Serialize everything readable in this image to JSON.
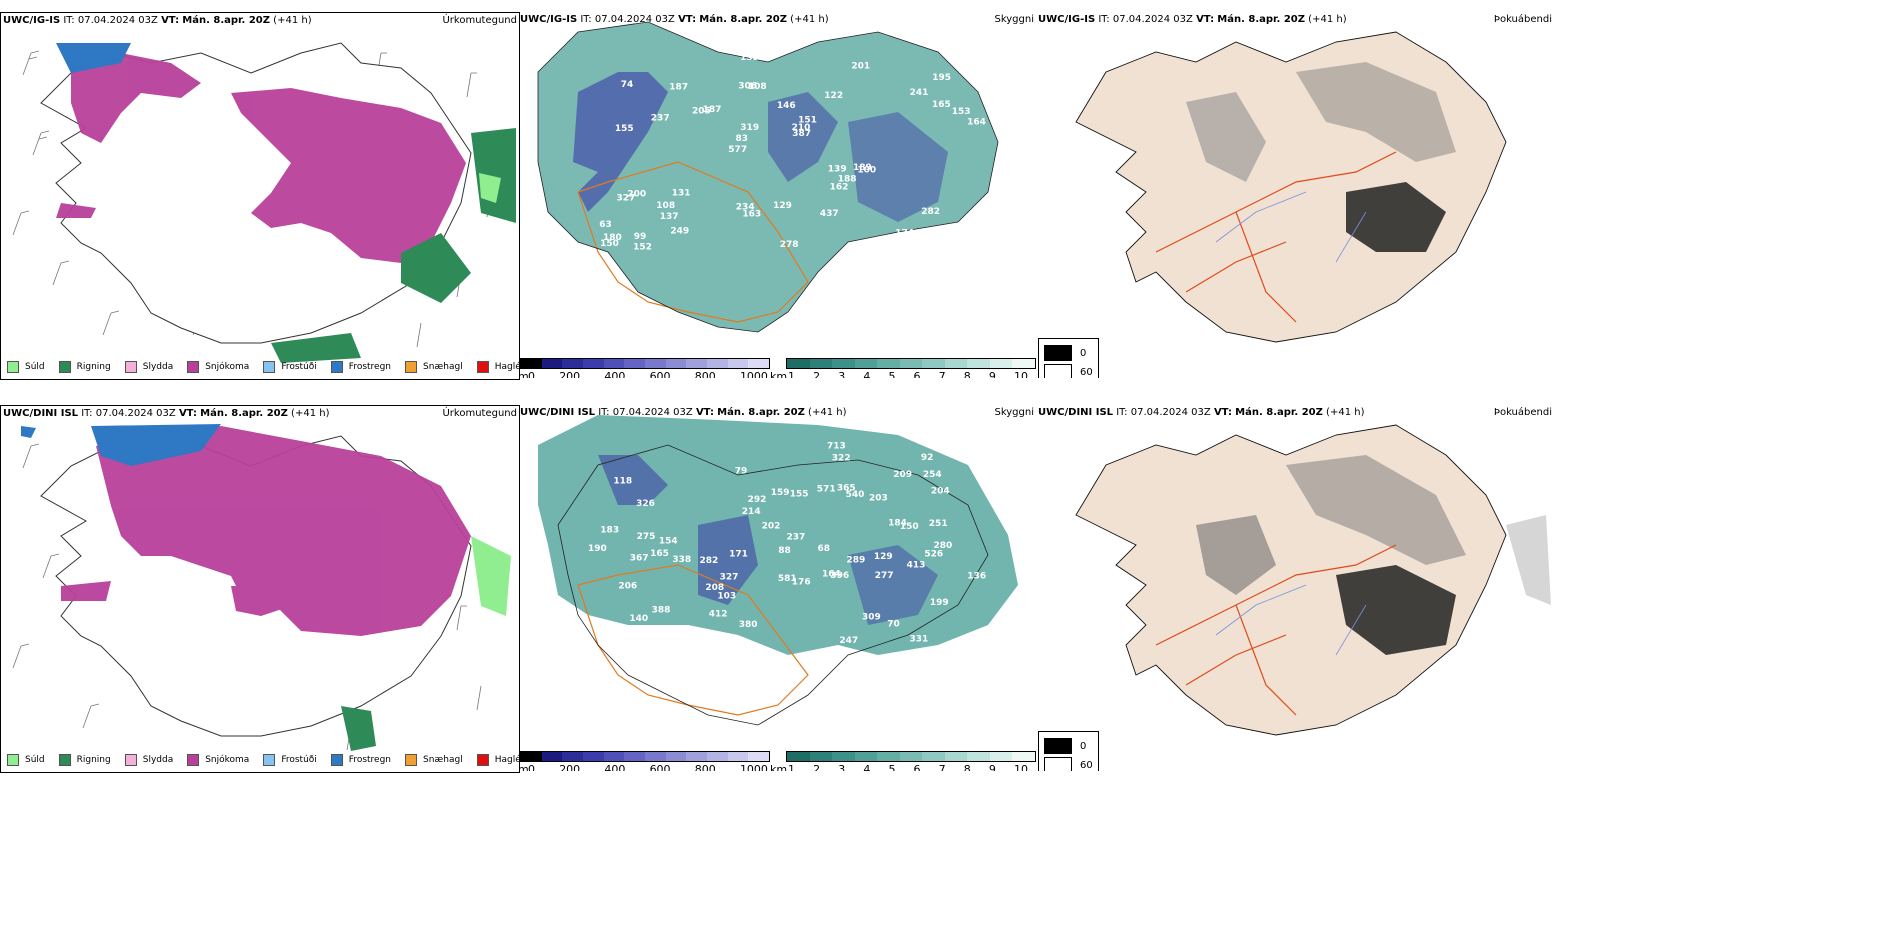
{
  "rows": [
    {
      "model": "UWC/IG-IS",
      "it_label": "IT:",
      "it_value": "07.04.2024 03Z",
      "vt_label": "VT:",
      "vt_value": "Mán. 8.apr. 20Z",
      "lead": "(+41 h)"
    },
    {
      "model": "UWC/DINI ISL",
      "it_label": "IT:",
      "it_value": "07.04.2024 03Z",
      "vt_label": "VT:",
      "vt_value": "Mán. 8.apr. 20Z",
      "lead": "(+41 h)"
    }
  ],
  "titles": {
    "precip": "Úrkomutegund",
    "visibility": "Skyggni",
    "fog": "Þokuábendi"
  },
  "precip_legend": [
    {
      "label": "Súld",
      "color": "#90ee90"
    },
    {
      "label": "Rigning",
      "color": "#2e8b57"
    },
    {
      "label": "Slydda",
      "color": "#f4b0d8"
    },
    {
      "label": "Snjókoma",
      "color": "#b8409a"
    },
    {
      "label": "Frostúði",
      "color": "#87c3f0"
    },
    {
      "label": "Frostregn",
      "color": "#2f78c4"
    },
    {
      "label": "Snæhagl",
      "color": "#f0a030"
    },
    {
      "label": "Haglél",
      "color": "#e01010"
    }
  ],
  "visibility_m": {
    "unit": "m",
    "ticks": [
      "0",
      "200",
      "400",
      "600",
      "800",
      "1000"
    ],
    "colors": [
      "#000000",
      "#1a1a80",
      "#2c2c9a",
      "#3c3cae",
      "#5050bb",
      "#6464c4",
      "#7878cc",
      "#8c8cd4",
      "#a0a0dc",
      "#b4b4e4",
      "#c8c8ec",
      "#dcdcf4"
    ]
  },
  "visibility_km": {
    "unit": "km",
    "ticks": [
      "1",
      "2",
      "3",
      "4",
      "5",
      "6",
      "7",
      "8",
      "9",
      "10"
    ],
    "colors": [
      "#1f6e66",
      "#2e807a",
      "#3e918a",
      "#50a098",
      "#64aea6",
      "#7abcb4",
      "#90c9c2",
      "#a8d6d0",
      "#c0e3de",
      "#d8efec",
      "#f0f8f6"
    ]
  },
  "fog_key": [
    {
      "label": "0",
      "color": "#000000"
    },
    {
      "label": "60",
      "color": "#ffffff"
    }
  ],
  "vis_labels_top": [
    "238",
    "155",
    "195",
    "577",
    "122",
    "99",
    "306",
    "146",
    "200",
    "187",
    "63",
    "137",
    "108",
    "151",
    "100",
    "74",
    "153",
    "164",
    "139",
    "165",
    "83",
    "234",
    "319",
    "187",
    "201",
    "131",
    "174",
    "282",
    "189",
    "278",
    "205",
    "237",
    "162",
    "249",
    "153",
    "210",
    "180",
    "163",
    "387",
    "327",
    "241",
    "199",
    "188",
    "437",
    "108",
    "152",
    "150",
    "129"
  ],
  "vis_labels_bottom": [
    "331",
    "165",
    "164",
    "118",
    "199",
    "326",
    "388",
    "282",
    "203",
    "159",
    "540",
    "70",
    "103",
    "79",
    "68",
    "206",
    "129",
    "237",
    "183",
    "140",
    "92",
    "155",
    "184",
    "136",
    "280",
    "275",
    "338",
    "88",
    "202",
    "254",
    "396",
    "367",
    "208",
    "365",
    "292",
    "413",
    "526",
    "309",
    "209",
    "247",
    "327",
    "176",
    "412",
    "713",
    "171",
    "154",
    "204",
    "322",
    "571",
    "581",
    "289",
    "251",
    "277",
    "150",
    "214",
    "190",
    "380"
  ]
}
